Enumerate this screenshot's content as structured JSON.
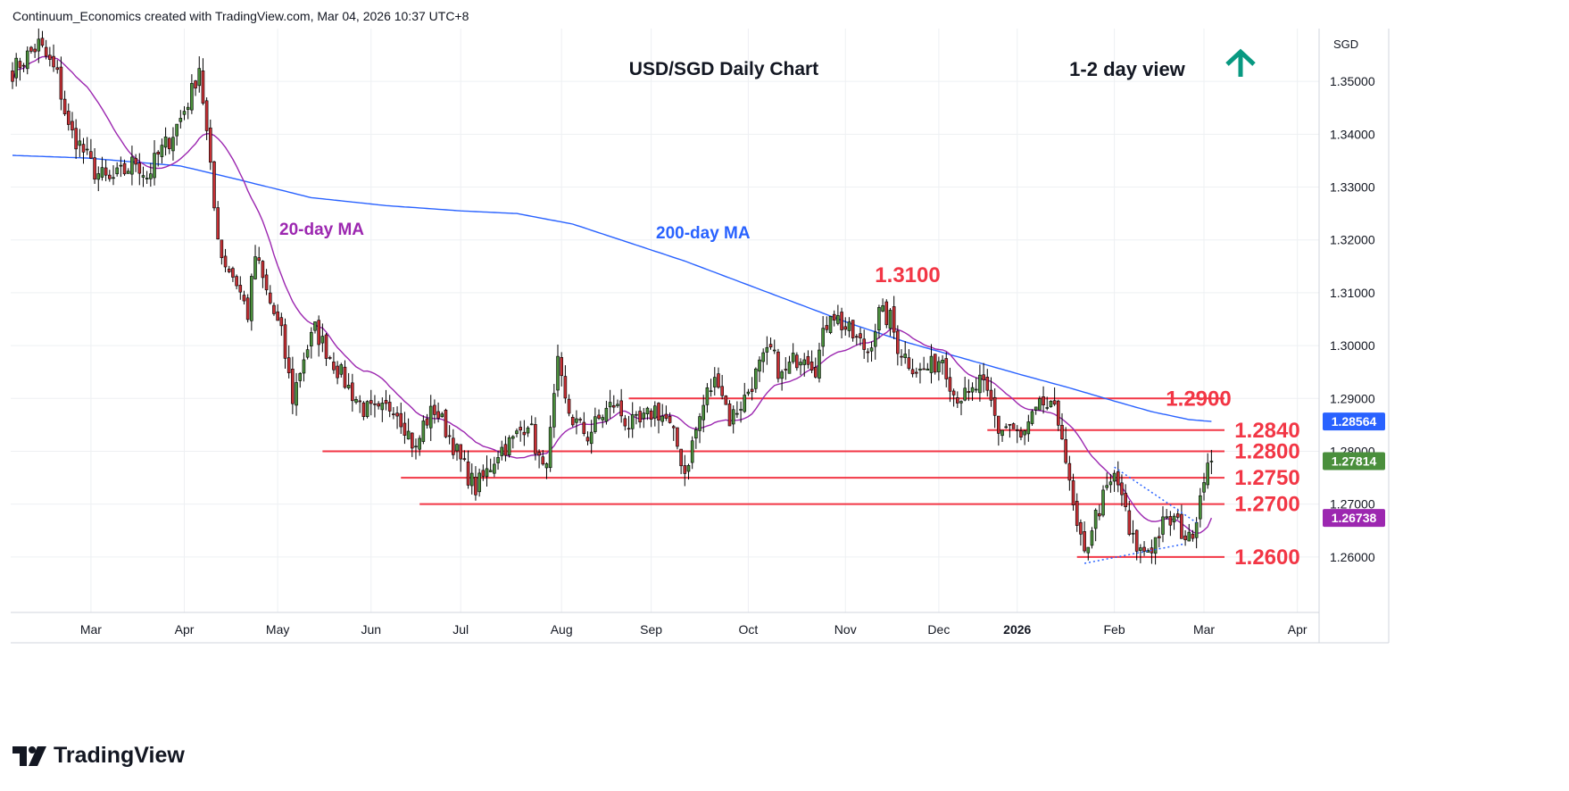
{
  "header": {
    "text": "Continuum_Economics created with TradingView.com, Mar 04, 2026 10:37 UTC+8"
  },
  "footer": {
    "brand": "TradingView"
  },
  "colors": {
    "up": "#4a8f3c",
    "down": "#c62f34",
    "wick": "#000000",
    "ma20": "#9c27b0",
    "ma200": "#2962ff",
    "level": "#f23645",
    "arrow": "#089981",
    "grid": "#eef0f3"
  },
  "icons": {
    "trend_arrow": "up-arrow-icon",
    "brand_logo": "tradingview-logo-icon"
  },
  "chart_data": {
    "type": "candlestick",
    "title": "USD/SGD Daily Chart",
    "subtitle": "1-2 day view",
    "currency": "SGD",
    "ylim": [
      1.2495,
      1.36
    ],
    "y_ticks": [
      {
        "value": 1.35,
        "label": "1.35000"
      },
      {
        "value": 1.34,
        "label": "1.34000"
      },
      {
        "value": 1.33,
        "label": "1.33000"
      },
      {
        "value": 1.32,
        "label": "1.32000"
      },
      {
        "value": 1.31,
        "label": "1.31000"
      },
      {
        "value": 1.3,
        "label": "1.30000"
      },
      {
        "value": 1.29,
        "label": "1.29000"
      },
      {
        "value": 1.28,
        "label": "1.28000"
      },
      {
        "value": 1.27,
        "label": "1.27000"
      },
      {
        "value": 1.26,
        "label": "1.26000"
      }
    ],
    "x_ticks": [
      "Mar",
      "Apr",
      "May",
      "Jun",
      "Jul",
      "Aug",
      "Sep",
      "Oct",
      "Nov",
      "Dec",
      "2026",
      "Feb",
      "Mar",
      "Apr"
    ],
    "price_badges": [
      {
        "value": 1.28564,
        "label": "1.28564",
        "color": "#2962ff"
      },
      {
        "value": 1.27814,
        "label": "1.27814",
        "color": "#4a8f3c"
      },
      {
        "value": 1.26738,
        "label": "1.26738",
        "color": "#9c27b0"
      }
    ],
    "levels": [
      {
        "value": 1.31,
        "label": "1.3100"
      },
      {
        "value": 1.29,
        "label": "1.2900"
      },
      {
        "value": 1.284,
        "label": "1.2840"
      },
      {
        "value": 1.28,
        "label": "1.2800"
      },
      {
        "value": 1.275,
        "label": "1.2750"
      },
      {
        "value": 1.27,
        "label": "1.2700"
      },
      {
        "value": 1.26,
        "label": "1.2600"
      }
    ],
    "series": [
      {
        "name": "20-day MA",
        "key": "ma20"
      },
      {
        "name": "200-day MA",
        "key": "ma200"
      }
    ],
    "anchors": [
      [
        0,
        1.352
      ],
      [
        7,
        1.357
      ],
      [
        12,
        1.351
      ],
      [
        15,
        1.341
      ],
      [
        18,
        1.338
      ],
      [
        22,
        1.333
      ],
      [
        26,
        1.331
      ],
      [
        30,
        1.333
      ],
      [
        33,
        1.335
      ],
      [
        36,
        1.332
      ],
      [
        39,
        1.336
      ],
      [
        42,
        1.339
      ],
      [
        45,
        1.343
      ],
      [
        48,
        1.348
      ],
      [
        50,
        1.353
      ],
      [
        52,
        1.34
      ],
      [
        54,
        1.326
      ],
      [
        56,
        1.317
      ],
      [
        60,
        1.312
      ],
      [
        63,
        1.306
      ],
      [
        65,
        1.317
      ],
      [
        68,
        1.31
      ],
      [
        72,
        1.302
      ],
      [
        75,
        1.29
      ],
      [
        78,
        1.298
      ],
      [
        81,
        1.303
      ],
      [
        85,
        1.298
      ],
      [
        90,
        1.292
      ],
      [
        94,
        1.288
      ],
      [
        98,
        1.287
      ],
      [
        102,
        1.289
      ],
      [
        105,
        1.285
      ],
      [
        108,
        1.28
      ],
      [
        110,
        1.285
      ],
      [
        113,
        1.288
      ],
      [
        117,
        1.283
      ],
      [
        120,
        1.278
      ],
      [
        124,
        1.273
      ],
      [
        127,
        1.276
      ],
      [
        130,
        1.28
      ],
      [
        134,
        1.282
      ],
      [
        138,
        1.286
      ],
      [
        142,
        1.276
      ],
      [
        144,
        1.283
      ],
      [
        146,
        1.296
      ],
      [
        148,
        1.289
      ],
      [
        150,
        1.286
      ],
      [
        154,
        1.283
      ],
      [
        158,
        1.287
      ],
      [
        161,
        1.289
      ],
      [
        165,
        1.285
      ],
      [
        168,
        1.285
      ],
      [
        172,
        1.288
      ],
      [
        175,
        1.286
      ],
      [
        178,
        1.281
      ],
      [
        180,
        1.276
      ],
      [
        183,
        1.284
      ],
      [
        186,
        1.291
      ],
      [
        189,
        1.294
      ],
      [
        192,
        1.286
      ],
      [
        196,
        1.29
      ],
      [
        200,
        1.296
      ],
      [
        203,
        1.299
      ],
      [
        206,
        1.294
      ],
      [
        209,
        1.297
      ],
      [
        212,
        1.299
      ],
      [
        215,
        1.296
      ],
      [
        219,
        1.307
      ],
      [
        222,
        1.304
      ],
      [
        226,
        1.301
      ],
      [
        229,
        1.299
      ],
      [
        232,
        1.306
      ],
      [
        235,
        1.305
      ],
      [
        237,
        1.3
      ],
      [
        240,
        1.297
      ],
      [
        243,
        1.295
      ],
      [
        246,
        1.296
      ],
      [
        249,
        1.298
      ],
      [
        252,
        1.291
      ],
      [
        256,
        1.29
      ],
      [
        259,
        1.293
      ],
      [
        262,
        1.289
      ],
      [
        264,
        1.284
      ],
      [
        267,
        1.285
      ],
      [
        270,
        1.282
      ],
      [
        273,
        1.286
      ],
      [
        276,
        1.289
      ],
      [
        279,
        1.287
      ],
      [
        281,
        1.284
      ],
      [
        283,
        1.273
      ],
      [
        285,
        1.265
      ],
      [
        287,
        1.26
      ],
      [
        289,
        1.266
      ],
      [
        292,
        1.271
      ],
      [
        295,
        1.275
      ],
      [
        297,
        1.272
      ],
      [
        299,
        1.264
      ],
      [
        302,
        1.261
      ],
      [
        305,
        1.262
      ],
      [
        308,
        1.266
      ],
      [
        311,
        1.267
      ],
      [
        313,
        1.265
      ],
      [
        315,
        1.263
      ],
      [
        317,
        1.268
      ],
      [
        319,
        1.276
      ],
      [
        321,
        1.278
      ]
    ],
    "ma200_anchors": [
      [
        0,
        1.336
      ],
      [
        20,
        1.3355
      ],
      [
        45,
        1.334
      ],
      [
        60,
        1.3315
      ],
      [
        80,
        1.328
      ],
      [
        100,
        1.3265
      ],
      [
        120,
        1.3255
      ],
      [
        135,
        1.325
      ],
      [
        150,
        1.323
      ],
      [
        165,
        1.3195
      ],
      [
        180,
        1.316
      ],
      [
        195,
        1.312
      ],
      [
        210,
        1.308
      ],
      [
        225,
        1.304
      ],
      [
        240,
        1.3005
      ],
      [
        255,
        1.2975
      ],
      [
        270,
        1.2945
      ],
      [
        283,
        1.292
      ],
      [
        295,
        1.2895
      ],
      [
        305,
        1.2875
      ],
      [
        315,
        1.286
      ],
      [
        321,
        1.28564
      ]
    ],
    "trendlines": [
      {
        "from": [
          287,
          1.2588
        ],
        "to": [
          314,
          1.2625
        ]
      },
      {
        "from": [
          295,
          1.277
        ],
        "to": [
          317,
          1.2665
        ]
      }
    ]
  }
}
